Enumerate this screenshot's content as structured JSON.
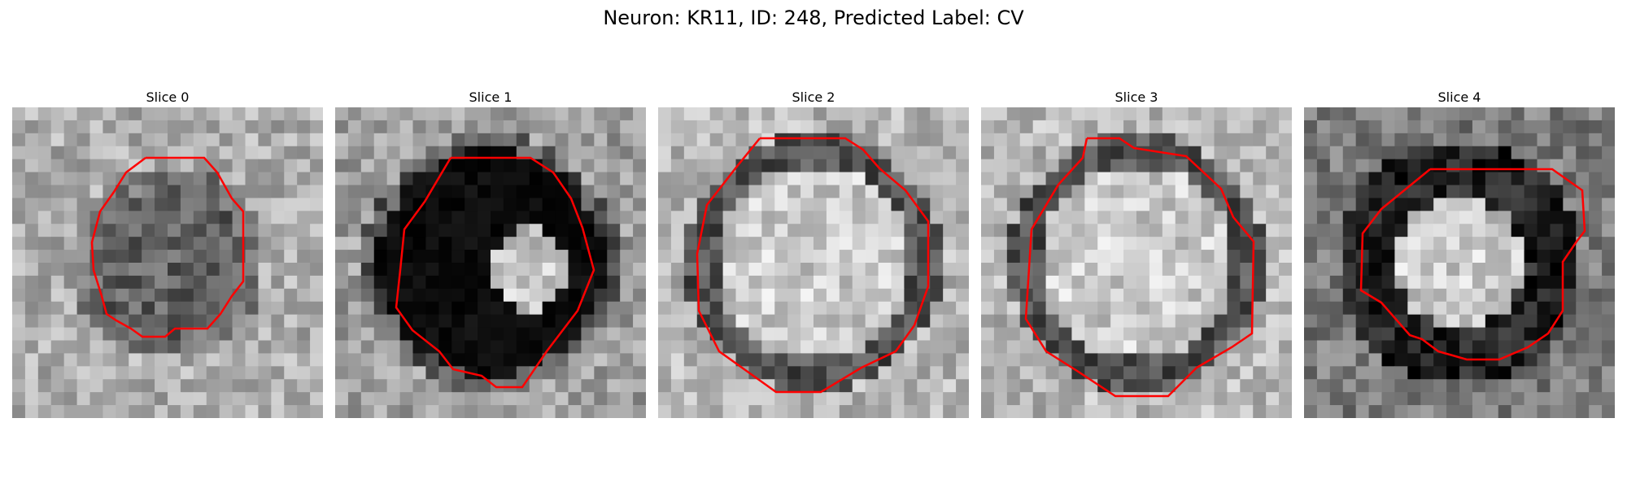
{
  "title": "Neuron: KR11, ID: 248, Predicted Label: CV",
  "panels": [
    {
      "label": "Slice 0",
      "style": "dark-core"
    },
    {
      "label": "Slice 1",
      "style": "black-core"
    },
    {
      "label": "Slice 2",
      "style": "bright-core"
    },
    {
      "label": "Slice 3",
      "style": "bright-core"
    },
    {
      "label": "Slice 4",
      "style": "ring-dark"
    }
  ],
  "colors": {
    "outline": "#ff0000",
    "background": "#ffffff"
  }
}
